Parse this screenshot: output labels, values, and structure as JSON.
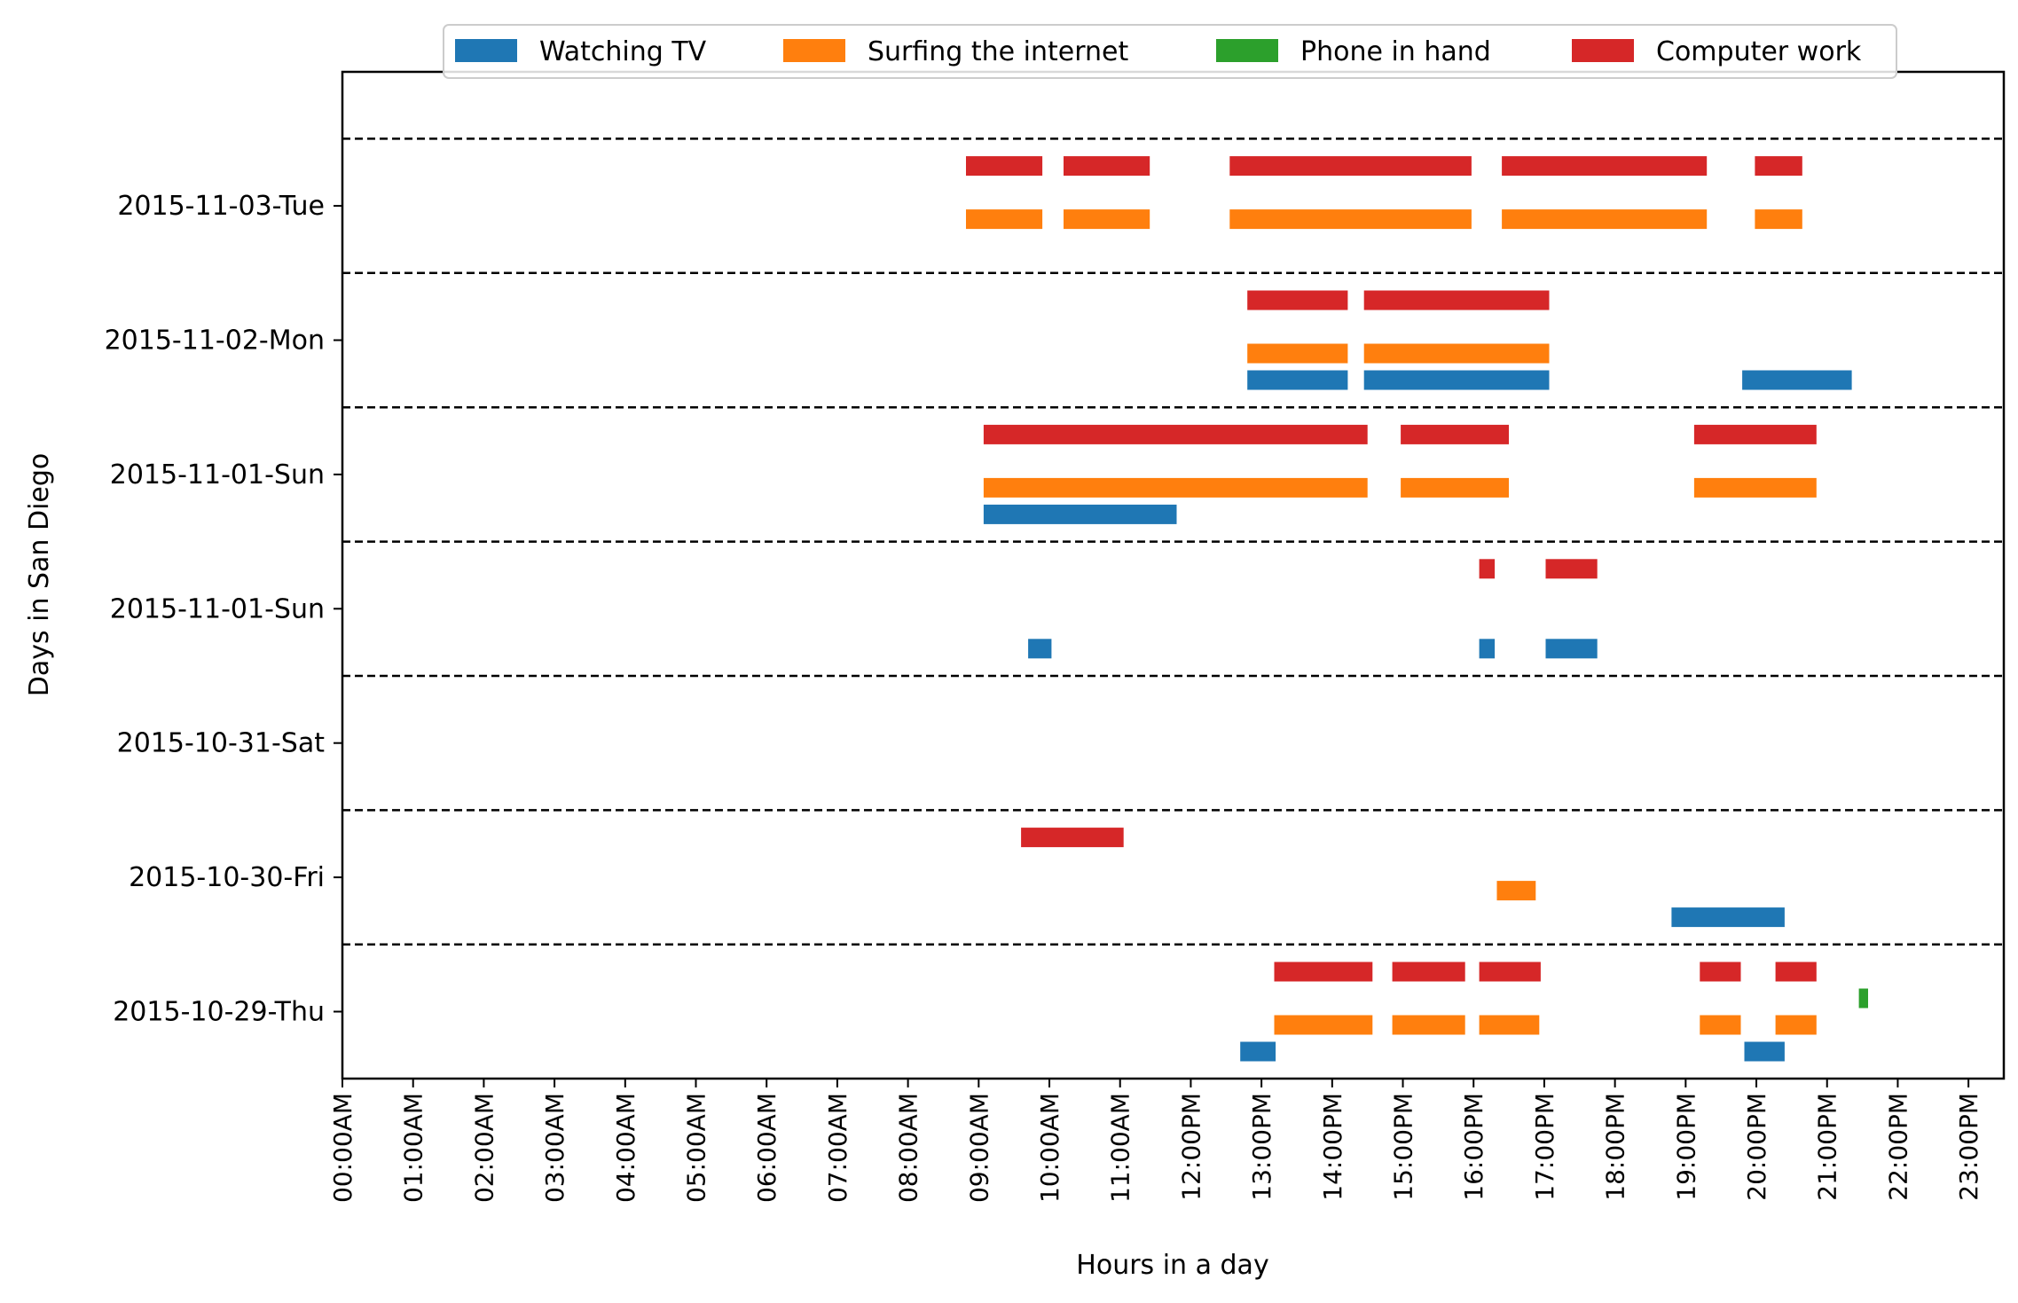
{
  "chart_data": {
    "type": "timeline",
    "xlabel": "Hours in a day",
    "ylabel": "Days in San Diego",
    "xlim": [
      0,
      23.5
    ],
    "legend_position": "top-center",
    "grid": false,
    "x_tick_labels": [
      "00:00AM",
      "01:00AM",
      "02:00AM",
      "03:00AM",
      "04:00AM",
      "05:00AM",
      "06:00AM",
      "07:00AM",
      "08:00AM",
      "09:00AM",
      "10:00AM",
      "11:00AM",
      "12:00PM",
      "13:00PM",
      "14:00PM",
      "15:00PM",
      "16:00PM",
      "17:00PM",
      "18:00PM",
      "19:00PM",
      "20:00PM",
      "21:00PM",
      "22:00PM",
      "23:00PM"
    ],
    "days": [
      "2015-10-29-Thu",
      "2015-10-30-Fri",
      "2015-10-31-Sat",
      "2015-11-01-Sun",
      "2015-11-01-Sun",
      "2015-11-02-Mon",
      "2015-11-03-Tue"
    ],
    "series": [
      {
        "name": "Watching TV",
        "color": "#1f77b4",
        "intervals": [
          {
            "day": 0,
            "start": 12.7,
            "end": 13.2
          },
          {
            "day": 0,
            "start": 19.83,
            "end": 20.4
          },
          {
            "day": 1,
            "start": 18.8,
            "end": 20.4
          },
          {
            "day": 3,
            "start": 9.7,
            "end": 10.03
          },
          {
            "day": 3,
            "start": 16.08,
            "end": 16.3
          },
          {
            "day": 3,
            "start": 17.02,
            "end": 17.75
          },
          {
            "day": 4,
            "start": 9.07,
            "end": 11.8
          },
          {
            "day": 5,
            "start": 12.8,
            "end": 14.22
          },
          {
            "day": 5,
            "start": 14.45,
            "end": 17.07
          },
          {
            "day": 5,
            "start": 19.8,
            "end": 21.35
          }
        ]
      },
      {
        "name": "Surfing the internet",
        "color": "#ff7f0e",
        "intervals": [
          {
            "day": 0,
            "start": 13.18,
            "end": 14.57
          },
          {
            "day": 0,
            "start": 14.85,
            "end": 15.88
          },
          {
            "day": 0,
            "start": 16.08,
            "end": 16.93
          },
          {
            "day": 0,
            "start": 19.2,
            "end": 19.78
          },
          {
            "day": 0,
            "start": 20.27,
            "end": 20.85
          },
          {
            "day": 1,
            "start": 16.33,
            "end": 16.88
          },
          {
            "day": 4,
            "start": 9.07,
            "end": 14.5
          },
          {
            "day": 4,
            "start": 14.97,
            "end": 16.5
          },
          {
            "day": 4,
            "start": 19.12,
            "end": 20.85
          },
          {
            "day": 5,
            "start": 12.8,
            "end": 14.22
          },
          {
            "day": 5,
            "start": 14.45,
            "end": 17.07
          },
          {
            "day": 6,
            "start": 8.82,
            "end": 9.9
          },
          {
            "day": 6,
            "start": 10.2,
            "end": 11.42
          },
          {
            "day": 6,
            "start": 12.55,
            "end": 15.97
          },
          {
            "day": 6,
            "start": 16.4,
            "end": 19.3
          },
          {
            "day": 6,
            "start": 19.98,
            "end": 20.65
          }
        ]
      },
      {
        "name": "Phone in hand",
        "color": "#2ca02c",
        "intervals": [
          {
            "day": 0,
            "start": 21.45,
            "end": 21.58
          }
        ]
      },
      {
        "name": "Computer work",
        "color": "#d62728",
        "intervals": [
          {
            "day": 0,
            "start": 13.18,
            "end": 14.57
          },
          {
            "day": 0,
            "start": 14.85,
            "end": 15.88
          },
          {
            "day": 0,
            "start": 16.08,
            "end": 16.95
          },
          {
            "day": 0,
            "start": 19.2,
            "end": 19.78
          },
          {
            "day": 0,
            "start": 20.27,
            "end": 20.85
          },
          {
            "day": 1,
            "start": 9.6,
            "end": 11.05
          },
          {
            "day": 3,
            "start": 16.08,
            "end": 16.3
          },
          {
            "day": 3,
            "start": 17.02,
            "end": 17.75
          },
          {
            "day": 4,
            "start": 9.07,
            "end": 14.5
          },
          {
            "day": 4,
            "start": 14.97,
            "end": 16.5
          },
          {
            "day": 4,
            "start": 19.12,
            "end": 20.85
          },
          {
            "day": 5,
            "start": 12.8,
            "end": 14.22
          },
          {
            "day": 5,
            "start": 14.45,
            "end": 17.07
          },
          {
            "day": 6,
            "start": 8.82,
            "end": 9.9
          },
          {
            "day": 6,
            "start": 10.2,
            "end": 11.42
          },
          {
            "day": 6,
            "start": 12.55,
            "end": 15.97
          },
          {
            "day": 6,
            "start": 16.4,
            "end": 19.3
          },
          {
            "day": 6,
            "start": 19.98,
            "end": 20.65
          }
        ]
      }
    ]
  }
}
